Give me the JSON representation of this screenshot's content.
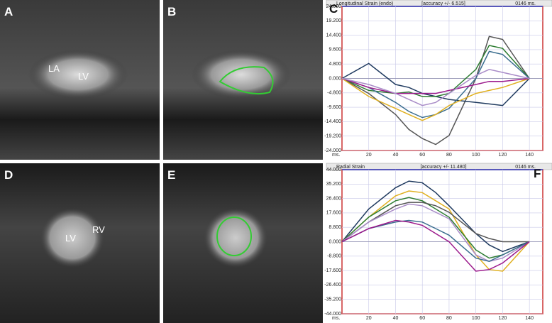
{
  "panels": {
    "a": "A",
    "b": "B",
    "c": "C",
    "d": "D",
    "e": "E",
    "f": "F",
    "la": "LA",
    "lv_top": "LV",
    "lv_bottom": "LV",
    "rv": "RV"
  },
  "chart_data": [
    {
      "type": "line",
      "title": "Longitudinal Strain (endo)",
      "annotation": "[accuracy +/- 6.515]",
      "time_label": "0146 ms.",
      "xlabel": "ms.",
      "x": [
        0,
        20,
        40,
        50,
        60,
        70,
        80,
        100,
        110,
        120,
        140
      ],
      "xlim": [
        0,
        150
      ],
      "xticks": [
        20,
        40,
        60,
        80,
        100,
        120,
        140
      ],
      "ylim": [
        -24,
        24
      ],
      "yticks": [
        {
          "value": 24,
          "label": "24.000"
        },
        {
          "value": 19.2,
          "label": "19.200"
        },
        {
          "value": 14.4,
          "label": "14.400"
        },
        {
          "value": 9.6,
          "label": "9.600"
        },
        {
          "value": 4.8,
          "label": "4.800"
        },
        {
          "value": 0,
          "label": "0.000"
        },
        {
          "value": -4.8,
          "label": "-4.800"
        },
        {
          "value": -9.6,
          "label": "-9.600"
        },
        {
          "value": -14.4,
          "label": "-14.400"
        },
        {
          "value": -19.2,
          "label": "-19.200"
        },
        {
          "value": -24,
          "label": "-24.000"
        }
      ],
      "grid": true,
      "series": [
        {
          "color": "#555555",
          "values": [
            0,
            -5,
            -12,
            -17,
            -20,
            -22,
            -19,
            0,
            14,
            13,
            0
          ]
        },
        {
          "color": "#1f3a5f",
          "values": [
            0,
            5,
            -2,
            -3,
            -5,
            -6,
            -7,
            -8,
            -8.5,
            -9,
            0
          ]
        },
        {
          "color": "#2e7d32",
          "values": [
            0,
            -4,
            -5,
            -4.5,
            -6,
            -6,
            -5,
            3,
            11,
            10,
            0
          ]
        },
        {
          "color": "#3b6e8f",
          "values": [
            0,
            -3,
            -8,
            -11,
            -13,
            -12,
            -10,
            0,
            9,
            8,
            0
          ]
        },
        {
          "color": "#e0b020",
          "values": [
            0,
            -6,
            -10,
            -12,
            -14,
            -12,
            -9,
            -5,
            -4,
            -3,
            0
          ]
        },
        {
          "color": "#9c1a8c",
          "values": [
            0,
            -3,
            -5,
            -5,
            -5,
            -5,
            -4,
            -2,
            -1,
            -1,
            0
          ]
        },
        {
          "color": "#a98cc8",
          "values": [
            0,
            -2,
            -5,
            -7,
            -9,
            -8,
            -5,
            1,
            3,
            2,
            0
          ]
        }
      ]
    },
    {
      "type": "line",
      "title": "Radial Strain",
      "annotation": "[accuracy +/- 11.480]",
      "time_label": "0146 ms.",
      "xlabel": "ms.",
      "x": [
        0,
        20,
        40,
        50,
        60,
        70,
        80,
        100,
        110,
        120,
        140
      ],
      "xlim": [
        0,
        150
      ],
      "xticks": [
        20,
        40,
        60,
        80,
        100,
        120,
        140
      ],
      "ylim": [
        -44,
        44
      ],
      "yticks": [
        {
          "value": 44,
          "label": "44.000"
        },
        {
          "value": 35.2,
          "label": "35.200"
        },
        {
          "value": 26.4,
          "label": "26.400"
        },
        {
          "value": 17.6,
          "label": "17.600"
        },
        {
          "value": 8.8,
          "label": "8.800"
        },
        {
          "value": 0,
          "label": "0.000"
        },
        {
          "value": -8.8,
          "label": "-8.800"
        },
        {
          "value": -17.6,
          "label": "-17.600"
        },
        {
          "value": -26.4,
          "label": "-26.400"
        },
        {
          "value": -35.2,
          "label": "-35.200"
        },
        {
          "value": -44,
          "label": "-44.000"
        }
      ],
      "grid": true,
      "series": [
        {
          "color": "#1f3a5f",
          "values": [
            0,
            20,
            33,
            37,
            36,
            30,
            22,
            5,
            -2,
            -6,
            0
          ]
        },
        {
          "color": "#e0b020",
          "values": [
            0,
            15,
            28,
            31,
            30,
            25,
            20,
            -8,
            -17,
            -18,
            0
          ]
        },
        {
          "color": "#2e7d32",
          "values": [
            0,
            15,
            25,
            27,
            25,
            20,
            15,
            -5,
            -10,
            -8,
            0
          ]
        },
        {
          "color": "#555555",
          "values": [
            0,
            12,
            22,
            24,
            24,
            22,
            18,
            5,
            2,
            0,
            0
          ]
        },
        {
          "color": "#a98cc8",
          "values": [
            0,
            12,
            20,
            23,
            22,
            18,
            14,
            -8,
            -12,
            -10,
            0
          ]
        },
        {
          "color": "#3b6e8f",
          "values": [
            0,
            8,
            12,
            13,
            12,
            8,
            4,
            -10,
            -12,
            -8,
            0
          ]
        },
        {
          "color": "#9c1a8c",
          "values": [
            0,
            8,
            13,
            12,
            10,
            5,
            0,
            -18,
            -17,
            -13,
            0
          ]
        }
      ]
    }
  ]
}
